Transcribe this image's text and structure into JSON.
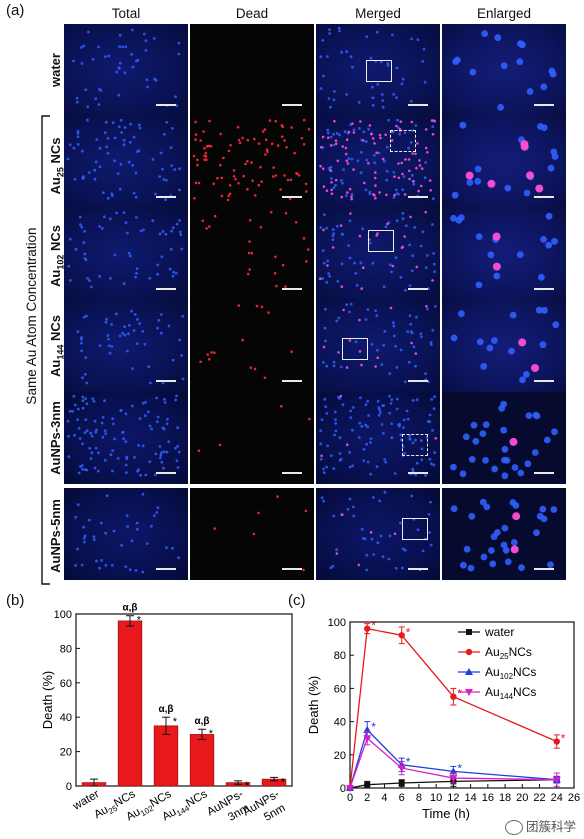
{
  "figure": {
    "panel_a": "(a)",
    "panel_b": "(b)",
    "panel_c": "(c)",
    "columns": [
      "Total",
      "Dead",
      "Merged",
      "Enlarged"
    ],
    "rows": [
      {
        "label": "water",
        "sub": "",
        "tail": ""
      },
      {
        "label": "Au",
        "sub": "25",
        "tail": " NCs"
      },
      {
        "label": "Au",
        "sub": "102",
        "tail": " NCs"
      },
      {
        "label": "Au",
        "sub": "144",
        "tail": " NCs"
      },
      {
        "label": "AuNPs-3nm",
        "sub": "",
        "tail": ""
      },
      {
        "label": "AuNPs-5nm",
        "sub": "",
        "tail": ""
      }
    ],
    "bracket_label": "Same Au Atom Concentration",
    "dot_colors": {
      "nuclei": "#2f5fff",
      "dead": "#ff2a3a",
      "merged": "#ff4fd6"
    }
  },
  "chart_data": [
    {
      "type": "bar",
      "panel": "(b)",
      "ylabel": "Death (%)",
      "xlabel": "",
      "ylim": [
        0,
        100
      ],
      "yticks": [
        "0",
        "20",
        "40",
        "60",
        "80",
        "100"
      ],
      "categories": [
        "water",
        "Au25NCs",
        "Au102NCs",
        "Au144NCs",
        "AuNPs-3nm",
        "AuNPs-5nm"
      ],
      "category_labels": [
        {
          "main": "water",
          "sub": "",
          "tail": "",
          "line2": ""
        },
        {
          "main": "Au",
          "sub": "25",
          "tail": "NCs",
          "line2": ""
        },
        {
          "main": "Au",
          "sub": "102",
          "tail": "NCs",
          "line2": ""
        },
        {
          "main": "Au",
          "sub": "144",
          "tail": "NCs",
          "line2": ""
        },
        {
          "main": "AuNPs-",
          "sub": "",
          "tail": "",
          "line2": "3nm"
        },
        {
          "main": "AuNPs-",
          "sub": "",
          "tail": "",
          "line2": "5nm"
        }
      ],
      "values": [
        2,
        96,
        35,
        30,
        2,
        4
      ],
      "errors": [
        2,
        3,
        5,
        3,
        1,
        1
      ],
      "annotations": [
        "",
        "*",
        "*",
        "*",
        "*",
        "*"
      ],
      "top_annotations": [
        "",
        "α,β",
        "α,β",
        "α,β",
        "",
        ""
      ],
      "bar_color": "#e8191c"
    },
    {
      "type": "line",
      "panel": "(c)",
      "xlabel": "Time (h)",
      "ylabel": "Death (%)",
      "xlim": [
        0,
        26
      ],
      "ylim": [
        0,
        100
      ],
      "xticks": [
        "0",
        "2",
        "4",
        "6",
        "8",
        "10",
        "12",
        "14",
        "16",
        "18",
        "20",
        "22",
        "24",
        "26"
      ],
      "yticks": [
        "0",
        "20",
        "40",
        "60",
        "80",
        "100"
      ],
      "x": [
        0,
        2,
        6,
        12,
        24
      ],
      "legend_position": "top-right",
      "series": [
        {
          "name": "water",
          "sub": "",
          "tail": "",
          "color": "#111111",
          "marker": "square",
          "values": [
            0,
            2,
            3,
            4,
            5
          ],
          "errors": [
            0,
            2,
            2,
            3,
            2
          ],
          "stars": [
            "",
            "",
            "",
            "",
            ""
          ]
        },
        {
          "name": "Au",
          "sub": "25",
          "tail": "NCs",
          "color": "#e8191c",
          "marker": "circle",
          "values": [
            0,
            96,
            92,
            55,
            28
          ],
          "errors": [
            0,
            3,
            5,
            5,
            4
          ],
          "stars": [
            "",
            "*",
            "*",
            "*",
            "*"
          ]
        },
        {
          "name": "Au",
          "sub": "102",
          "tail": "NCs",
          "color": "#1f3fd6",
          "marker": "triangle",
          "values": [
            0,
            35,
            14,
            10,
            5
          ],
          "errors": [
            0,
            5,
            4,
            3,
            2
          ],
          "stars": [
            "",
            "*",
            "*",
            "*",
            ""
          ]
        },
        {
          "name": "Au",
          "sub": "144",
          "tail": "NCs",
          "color": "#d61fc8",
          "marker": "triangle-down",
          "values": [
            0,
            30,
            12,
            6,
            5
          ],
          "errors": [
            0,
            4,
            4,
            3,
            4
          ],
          "stars": [
            "",
            "",
            "",
            "",
            ""
          ]
        }
      ]
    }
  ],
  "watermark": "团簇科学"
}
